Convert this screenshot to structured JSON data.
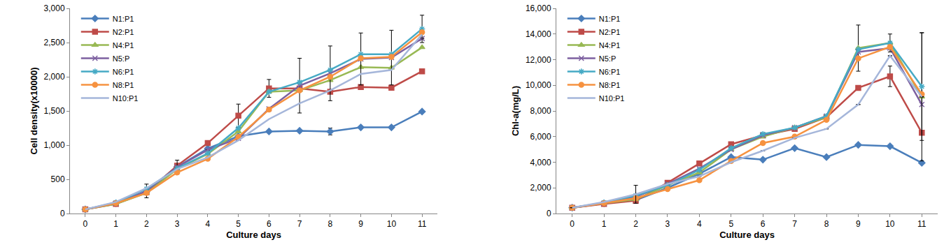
{
  "chart_data": [
    {
      "type": "line",
      "x_label": "Culture days",
      "y_label": "Cell density(x10000)",
      "x": [
        0,
        1,
        2,
        3,
        4,
        5,
        6,
        7,
        8,
        9,
        10,
        11
      ],
      "xlim": [
        -0.5,
        11.5
      ],
      "xticks": [
        0,
        1,
        2,
        3,
        4,
        5,
        6,
        7,
        8,
        9,
        10,
        11
      ],
      "ylim": [
        0,
        3000
      ],
      "yticks": [
        0,
        500,
        {
          "value": 1000,
          "label": "1,000"
        },
        {
          "value": 1500,
          "label": "1,500"
        },
        {
          "value": 2000,
          "label": "2,000"
        },
        {
          "value": 2500,
          "label": "2,500"
        },
        {
          "value": 3000,
          "label": "3,000"
        }
      ],
      "legend": "top left",
      "series": [
        {
          "name": "N1:P1",
          "color": "#4a7ebb",
          "marker": "diamond",
          "values": [
            60,
            150,
            320,
            680,
            950,
            1130,
            1200,
            1210,
            1200,
            1260,
            1260,
            1490
          ],
          "error": [
            null,
            null,
            null,
            null,
            null,
            null,
            null,
            null,
            50,
            null,
            null,
            null
          ]
        },
        {
          "name": "N2:P1",
          "color": "#be4b48",
          "marker": "square",
          "values": [
            60,
            140,
            310,
            700,
            1030,
            1430,
            1830,
            1830,
            1780,
            1850,
            1840,
            2080
          ],
          "error": [
            null,
            null,
            null,
            null,
            null,
            170,
            130,
            null,
            null,
            null,
            null,
            null
          ]
        },
        {
          "name": "N4:P1",
          "color": "#98b954",
          "marker": "triangle",
          "values": [
            60,
            140,
            300,
            650,
            870,
            1200,
            1780,
            1800,
            1950,
            2140,
            2130,
            2430
          ]
        },
        {
          "name": "N5:P",
          "color": "#7d60a0",
          "marker": "x",
          "values": [
            60,
            150,
            330,
            680,
            930,
            1100,
            1530,
            1870,
            2050,
            2260,
            2280,
            2560
          ],
          "error": [
            null,
            null,
            100,
            100,
            null,
            null,
            null,
            400,
            400,
            380,
            400,
            null
          ]
        },
        {
          "name": "N6:P1",
          "color": "#46aac5",
          "marker": "asterisk",
          "values": [
            60,
            160,
            360,
            660,
            880,
            1250,
            1780,
            1920,
            2100,
            2330,
            2330,
            2700
          ],
          "error": [
            null,
            null,
            null,
            null,
            null,
            null,
            null,
            null,
            null,
            null,
            null,
            200
          ]
        },
        {
          "name": "N8:P1",
          "color": "#f69240",
          "marker": "circle",
          "values": [
            60,
            150,
            300,
            600,
            800,
            1120,
            1520,
            1800,
            2000,
            2270,
            2290,
            2650
          ]
        },
        {
          "name": "N10:P1",
          "color": "#a5b6da",
          "marker": "none",
          "values": [
            60,
            170,
            370,
            650,
            820,
            1070,
            1380,
            1610,
            1800,
            2040,
            2100,
            2620
          ]
        }
      ]
    },
    {
      "type": "line",
      "x_label": "Culture days",
      "y_label": "Chl-a(mg/L)",
      "x": [
        0,
        1,
        2,
        3,
        4,
        5,
        6,
        7,
        8,
        9,
        10,
        11
      ],
      "xlim": [
        -0.5,
        11.5
      ],
      "xticks": [
        0,
        1,
        2,
        3,
        4,
        5,
        6,
        7,
        8,
        9,
        10,
        11
      ],
      "ylim": [
        0,
        16000
      ],
      "yticks": [
        0,
        {
          "value": 2000,
          "label": "2,000"
        },
        {
          "value": 4000,
          "label": "4,000"
        },
        {
          "value": 6000,
          "label": "6,000"
        },
        {
          "value": 8000,
          "label": "8,000"
        },
        {
          "value": 10000,
          "label": "10,000"
        },
        {
          "value": 12000,
          "label": "12,000"
        },
        {
          "value": 14000,
          "label": "14,000"
        },
        {
          "value": 16000,
          "label": "16,000"
        }
      ],
      "legend": "top left",
      "series": [
        {
          "name": "N1:P1",
          "color": "#4a7ebb",
          "marker": "diamond",
          "values": [
            450,
            800,
            1050,
            2000,
            3100,
            4400,
            4200,
            5100,
            4400,
            5350,
            5250,
            3950
          ]
        },
        {
          "name": "N2:P1",
          "color": "#be4b48",
          "marker": "square",
          "values": [
            450,
            750,
            1000,
            2400,
            3900,
            5400,
            6100,
            6600,
            7500,
            9800,
            10700,
            6300
          ],
          "error": [
            null,
            null,
            null,
            null,
            null,
            null,
            null,
            null,
            null,
            null,
            800,
            null
          ]
        },
        {
          "name": "N4:P1",
          "color": "#98b954",
          "marker": "triangle",
          "values": [
            450,
            800,
            1100,
            2200,
            3200,
            5000,
            6000,
            6700,
            7500,
            12900,
            13300,
            9100
          ],
          "error": [
            null,
            null,
            null,
            null,
            null,
            null,
            null,
            null,
            null,
            1800,
            null,
            5000
          ]
        },
        {
          "name": "N5:P",
          "color": "#7d60a0",
          "marker": "x",
          "values": [
            450,
            800,
            1300,
            2300,
            3500,
            5000,
            6100,
            6700,
            7600,
            12600,
            12900,
            8500
          ]
        },
        {
          "name": "N6:P1",
          "color": "#46aac5",
          "marker": "asterisk",
          "values": [
            450,
            850,
            1400,
            2200,
            3400,
            5100,
            6200,
            6700,
            7600,
            12800,
            13300,
            9900
          ],
          "error": [
            null,
            null,
            null,
            null,
            null,
            null,
            null,
            null,
            null,
            null,
            700,
            4200
          ]
        },
        {
          "name": "N8:P1",
          "color": "#f69240",
          "marker": "circle",
          "values": [
            450,
            800,
            1200,
            1900,
            2600,
            4100,
            5500,
            6000,
            7300,
            12100,
            13000,
            9300
          ]
        },
        {
          "name": "N10:P1",
          "color": "#a5b6da",
          "marker": "none",
          "values": [
            450,
            900,
            1500,
            2300,
            2900,
            4000,
            4900,
            5900,
            6600,
            8500,
            12300,
            9100
          ],
          "error": [
            null,
            null,
            700,
            null,
            null,
            null,
            null,
            null,
            null,
            null,
            null,
            null
          ]
        }
      ]
    }
  ]
}
